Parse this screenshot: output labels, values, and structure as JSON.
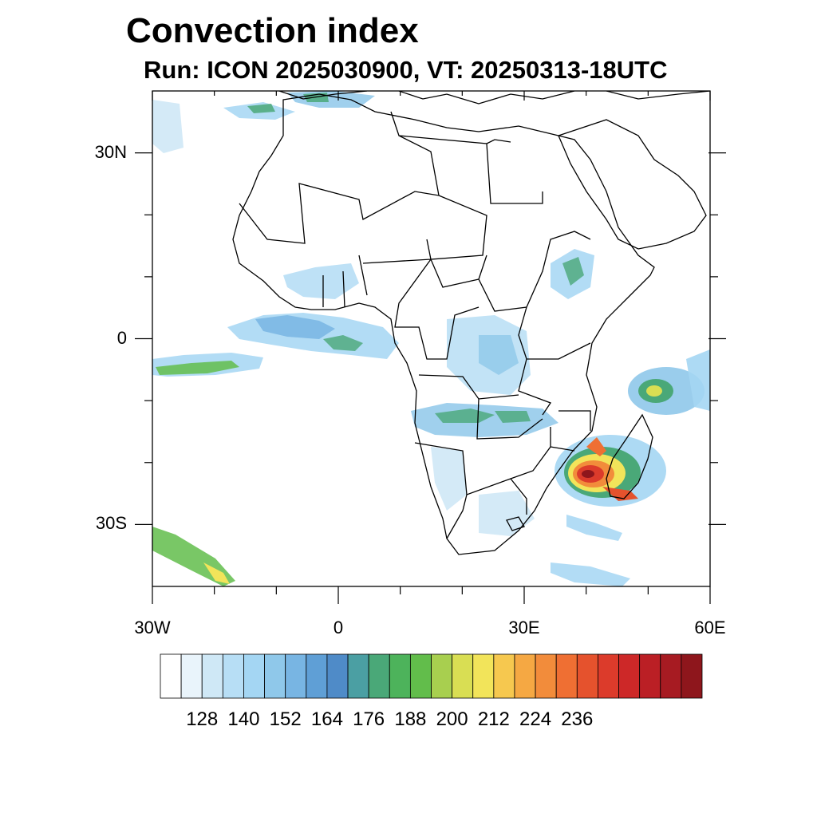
{
  "title": "Convection index",
  "subtitle": "Run: ICON 2025030900,  VT: 20250313-18UTC",
  "map": {
    "projection": "cylindrical-equidistant",
    "lon_range": [
      -30,
      60
    ],
    "lat_range": [
      -40,
      40
    ],
    "lon_ticks": [
      {
        "value": -30,
        "label": "30W"
      },
      {
        "value": 0,
        "label": "0"
      },
      {
        "value": 30,
        "label": "30E"
      },
      {
        "value": 60,
        "label": "60E"
      }
    ],
    "lat_ticks": [
      {
        "value": 30,
        "label": "30N"
      },
      {
        "value": 0,
        "label": "0"
      },
      {
        "value": -30,
        "label": "30S"
      }
    ],
    "minor_lon_ticks": [
      -20,
      -10,
      10,
      20,
      40,
      50
    ],
    "minor_lat_ticks": [
      20,
      10,
      -10,
      -20
    ],
    "coastline_color": "#000000",
    "field_max_location": "Mozambique Channel, off southern Madagascar"
  },
  "colorbar": {
    "levels": [
      128,
      140,
      152,
      164,
      176,
      188,
      200,
      212,
      224,
      236
    ],
    "colors": [
      "#ffffff",
      "#e9f4fb",
      "#cfe8f6",
      "#b7def5",
      "#a4d6f3",
      "#8fc8ea",
      "#78b5e3",
      "#5f9fd6",
      "#4f8bc8",
      "#4b9fa3",
      "#4aa878",
      "#4db35b",
      "#62bd4b",
      "#a8cf4f",
      "#d9de53",
      "#f2e45a",
      "#f6c84f",
      "#f5a843",
      "#f28c3b",
      "#ef6f33",
      "#e5522d",
      "#dc3b2b",
      "#cd2828",
      "#bb1f25",
      "#a71b22",
      "#8e161c"
    ]
  }
}
